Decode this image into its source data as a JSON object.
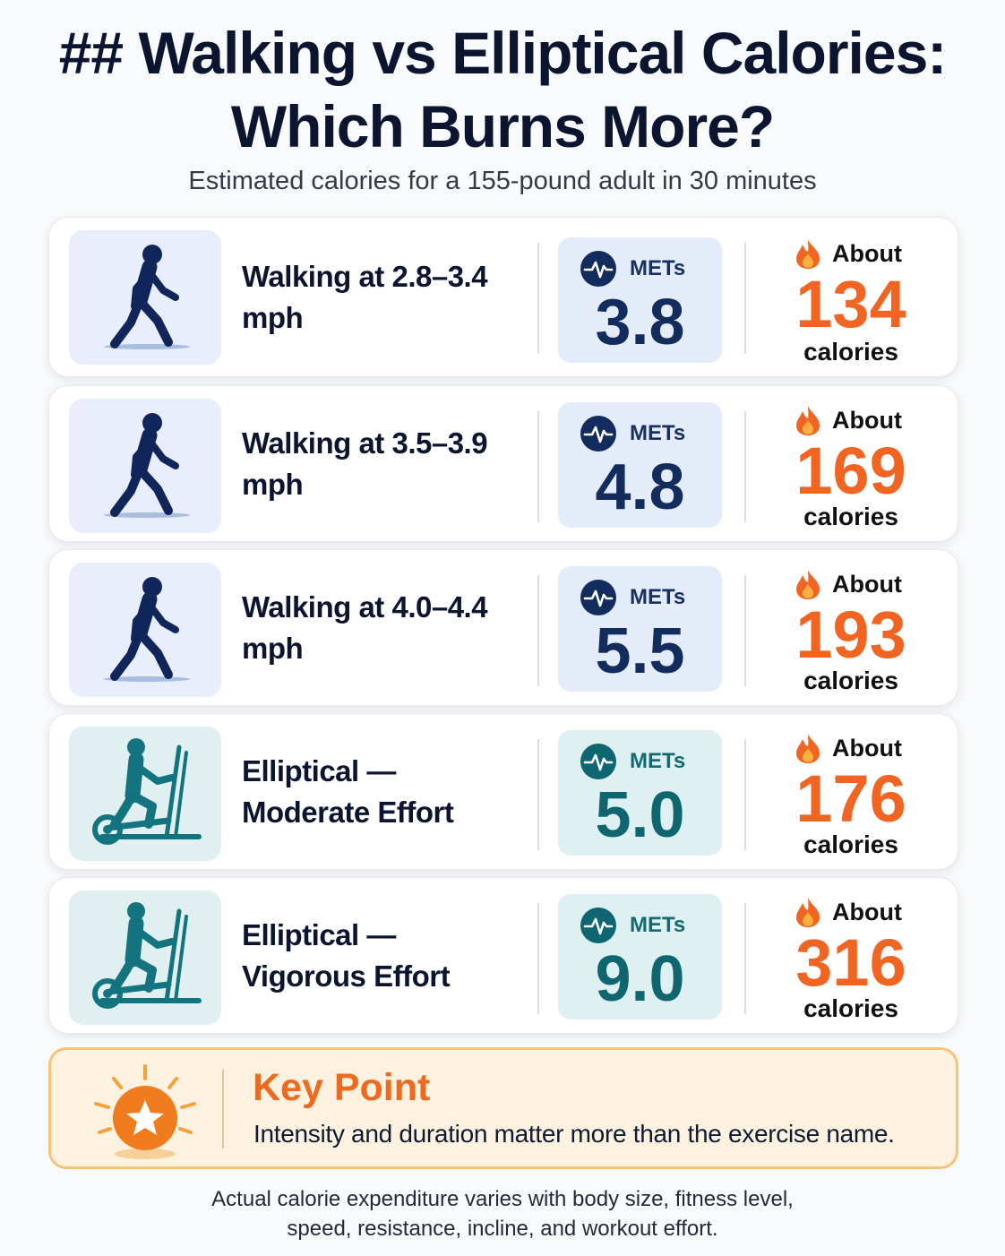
{
  "header": {
    "title_line1": "## Walking vs Elliptical Calories:",
    "title_line2": "Which Burns More?",
    "subtitle": "Estimated calories for a 155-pound adult in 30 minutes"
  },
  "rows": [
    {
      "label_line1": "Walking at 2.8–3.4 mph",
      "label_line2": "",
      "icon": "walking-person-icon",
      "met_label": "METs",
      "met_value": "3.8",
      "about": "About",
      "calories": "134",
      "unit": "calories"
    },
    {
      "label_line1": "Walking at 3.5–3.9 mph",
      "label_line2": "",
      "icon": "walking-person-icon",
      "met_label": "METs",
      "met_value": "4.8",
      "about": "About",
      "calories": "169",
      "unit": "calories"
    },
    {
      "label_line1": "Walking at 4.0–4.4 mph",
      "label_line2": "",
      "icon": "walking-person-icon",
      "met_label": "METs",
      "met_value": "5.5",
      "about": "About",
      "calories": "193",
      "unit": "calories"
    },
    {
      "label_line1": "Elliptical —",
      "label_line2": "Moderate Effort",
      "icon": "elliptical-machine-icon",
      "met_label": "METs",
      "met_value": "5.0",
      "about": "About",
      "calories": "176",
      "unit": "calories"
    },
    {
      "label_line1": "Elliptical —",
      "label_line2": "Vigorous Effort",
      "icon": "elliptical-machine-icon",
      "met_label": "METs",
      "met_value": "9.0",
      "about": "About",
      "calories": "316",
      "unit": "calories"
    }
  ],
  "key_point": {
    "title": "Key Point",
    "text": "Intensity and duration matter more than the exercise name."
  },
  "footnote": {
    "line1": "Actual calorie expenditure varies with body size, fitness level,",
    "line2": "speed, resistance, incline, and workout effort."
  },
  "colors": {
    "navy": "#132c5e",
    "teal": "#0f6670",
    "orange": "#f26422"
  }
}
